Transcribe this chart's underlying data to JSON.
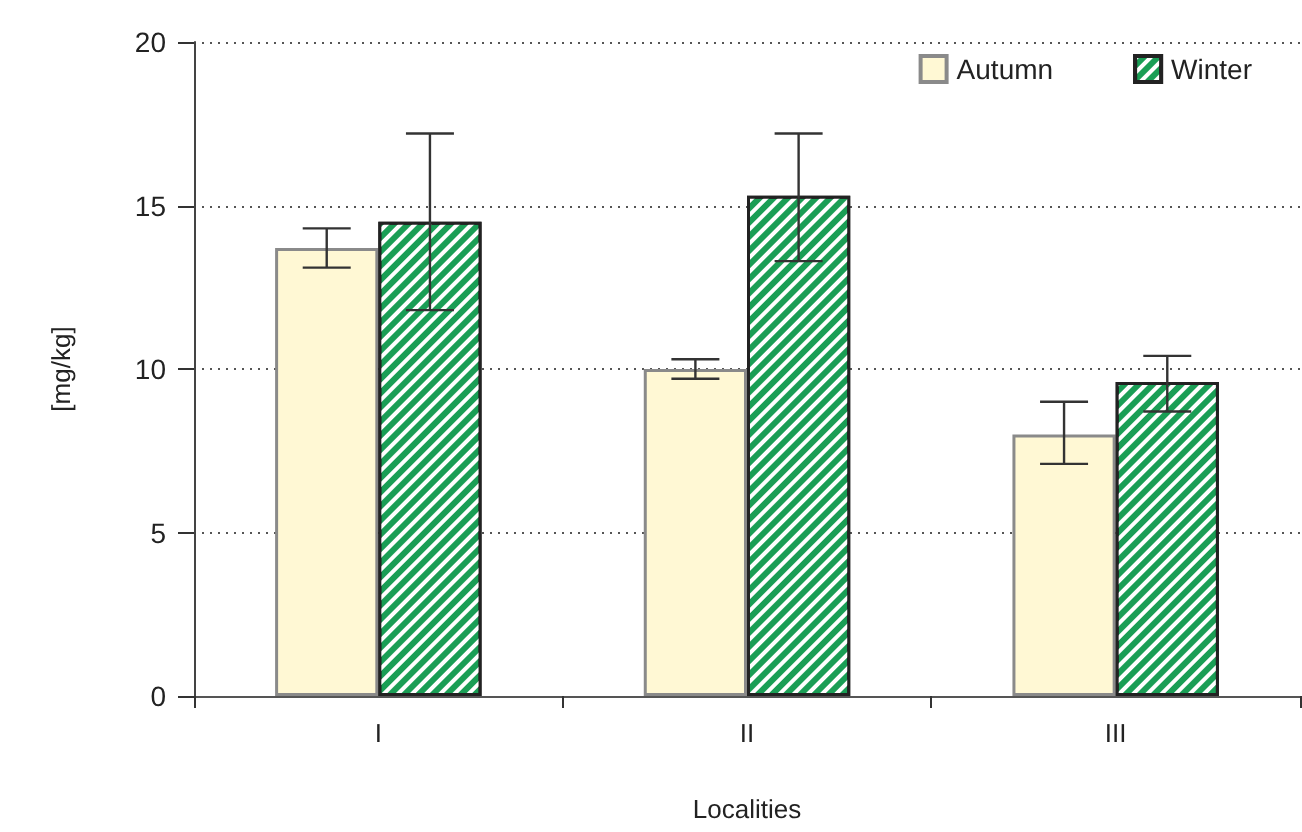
{
  "chart_data": {
    "type": "bar",
    "xlabel": "Localities",
    "ylabel": "[mg/kg]",
    "categories": [
      "I",
      "II",
      "III"
    ],
    "series": [
      {
        "name": "Autumn",
        "color": "#fff8d4",
        "values": [
          13.7,
          10.0,
          8.0
        ],
        "errors": [
          0.6,
          0.3,
          [
            7.1,
            9.0
          ]
        ]
      },
      {
        "name": "Winter",
        "color": "#1a9e55",
        "values": [
          14.5,
          15.3,
          9.6
        ],
        "errors": [
          2.7,
          [
            13.3,
            17.2
          ],
          [
            8.7,
            10.4
          ]
        ]
      }
    ],
    "ylim": [
      0,
      20
    ],
    "yticks": [
      0,
      5,
      10,
      15,
      20
    ],
    "grid": "y",
    "legend": "top right"
  }
}
